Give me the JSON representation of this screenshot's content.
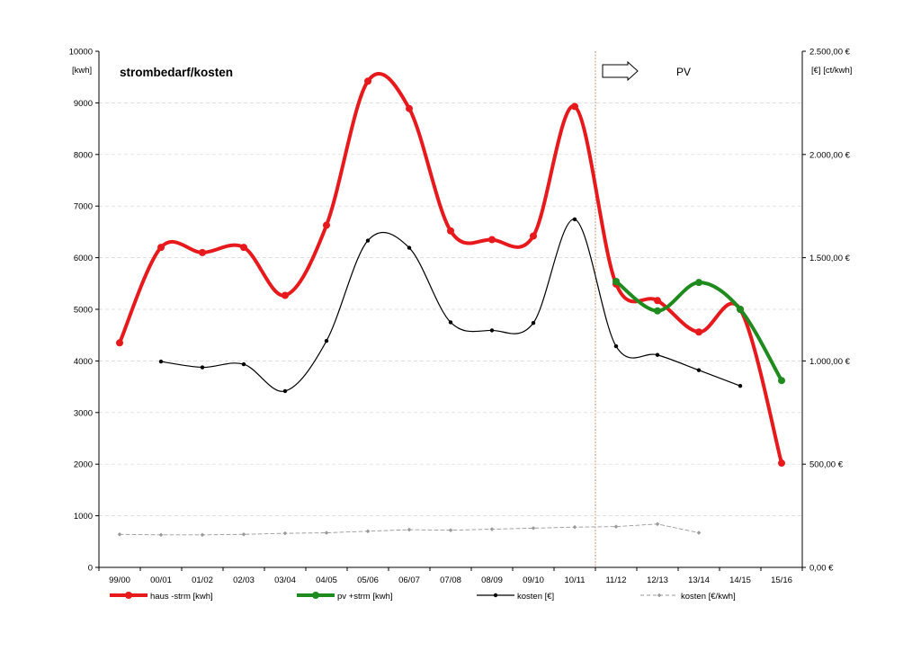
{
  "chart_data": {
    "type": "line",
    "title": "strombedarf/kosten",
    "ylabel_left": "[kwh]",
    "ylabel_right": "[€] [ct/kwh]",
    "annotation": "PV",
    "categories": [
      "99/00",
      "00/01",
      "01/02",
      "02/03",
      "03/04",
      "04/05",
      "05/06",
      "06/07",
      "07/08",
      "08/09",
      "09/10",
      "10/11",
      "11/12",
      "12/13",
      "13/14",
      "14/15",
      "15/16"
    ],
    "ylim_left": [
      0,
      10000
    ],
    "yticks_left": [
      "0",
      "1000",
      "2000",
      "3000",
      "4000",
      "5000",
      "6000",
      "7000",
      "8000",
      "9000",
      "10000"
    ],
    "ylim_right": [
      0,
      2500
    ],
    "yticks_right": [
      "0,00 €",
      "500,00 €",
      "1.000,00 €",
      "1.500,00 €",
      "2.000,00 €",
      "2.500,00 €"
    ],
    "grid": true,
    "legend_position": "bottom",
    "colors": {
      "haus": "#e8191c",
      "pv": "#1f8b1f",
      "kosten": "#000000",
      "kosten_kwh": "#9a9a9a",
      "divider": "#c87a5a"
    },
    "series": [
      {
        "name": "haus -strm [kwh]",
        "axis": "left",
        "style": "thick-red",
        "values": [
          4350,
          6200,
          6100,
          6200,
          5270,
          6630,
          9420,
          8890,
          6520,
          6350,
          6420,
          8930,
          5490,
          5170,
          4560,
          5000,
          2020
        ]
      },
      {
        "name": "pv +strm [kwh]",
        "axis": "left",
        "style": "thick-green",
        "values": [
          null,
          null,
          null,
          null,
          null,
          null,
          null,
          null,
          null,
          null,
          null,
          null,
          5540,
          4970,
          5520,
          5000,
          3620
        ]
      },
      {
        "name": "kosten [€]",
        "axis": "right",
        "style": "thin-black",
        "values": [
          null,
          997,
          969,
          984,
          854,
          1097,
          1583,
          1548,
          1187,
          1148,
          1184,
          1686,
          1071,
          1029,
          955,
          879,
          null
        ]
      },
      {
        "name": "kosten [€/kwh]",
        "axis": "left",
        "style": "dashed-gray",
        "values": [
          640,
          630,
          630,
          640,
          660,
          670,
          700,
          730,
          720,
          740,
          760,
          780,
          790,
          840,
          670,
          null,
          null
        ]
      }
    ]
  }
}
